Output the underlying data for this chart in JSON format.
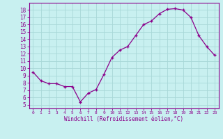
{
  "x": [
    0,
    1,
    2,
    3,
    4,
    5,
    6,
    7,
    8,
    9,
    10,
    11,
    12,
    13,
    14,
    15,
    16,
    17,
    18,
    19,
    20,
    21,
    22,
    23
  ],
  "y": [
    9.5,
    8.3,
    7.9,
    7.9,
    7.5,
    7.5,
    5.4,
    6.6,
    7.1,
    9.2,
    11.5,
    12.5,
    13.0,
    14.5,
    16.0,
    16.5,
    17.5,
    18.1,
    18.2,
    18.0,
    17.0,
    14.5,
    13.0,
    11.8
  ],
  "line_color": "#8B008B",
  "marker": "+",
  "background_color": "#c8f0f0",
  "grid_color": "#a8d8d8",
  "xlabel": "Windchill (Refroidissement éolien,°C)",
  "xlim": [
    -0.5,
    23.5
  ],
  "ylim": [
    4.5,
    19.0
  ],
  "xticks": [
    0,
    1,
    2,
    3,
    4,
    5,
    6,
    7,
    8,
    9,
    10,
    11,
    12,
    13,
    14,
    15,
    16,
    17,
    18,
    19,
    20,
    21,
    22,
    23
  ],
  "yticks": [
    5,
    6,
    7,
    8,
    9,
    10,
    11,
    12,
    13,
    14,
    15,
    16,
    17,
    18
  ],
  "xlabel_color": "#8B008B",
  "tick_color": "#8B008B",
  "axis_color": "#8B008B"
}
